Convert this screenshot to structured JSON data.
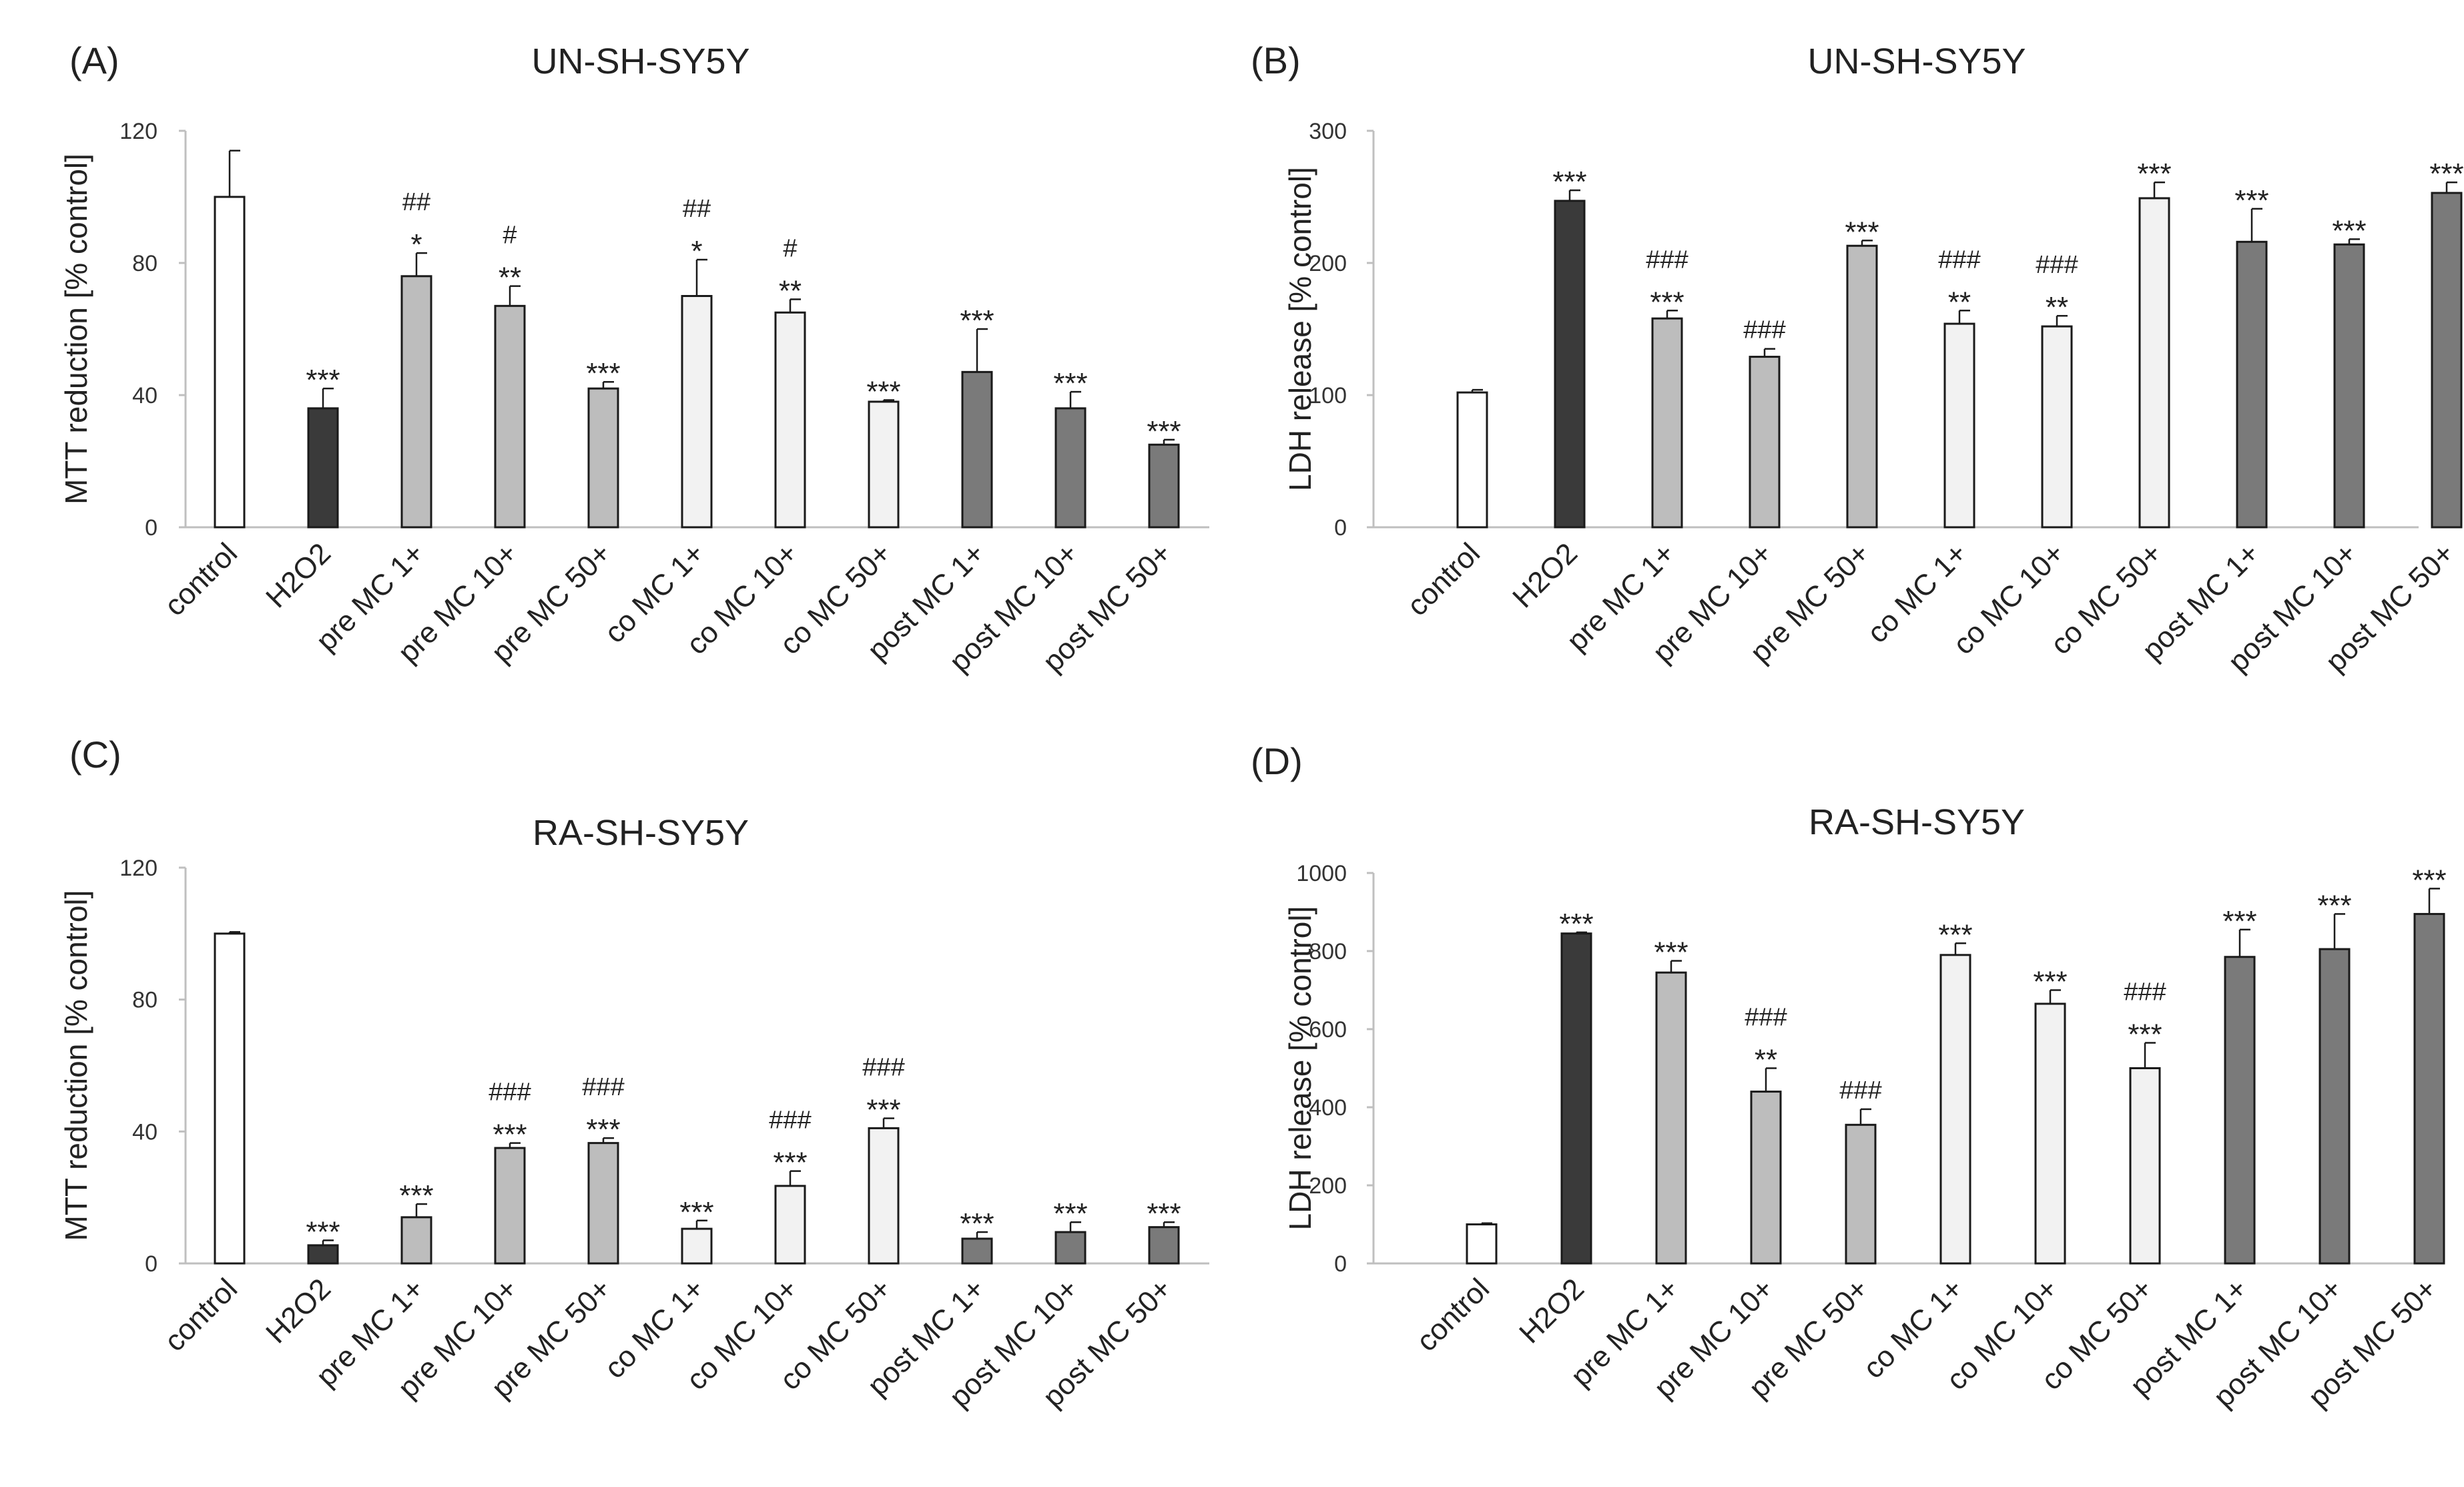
{
  "chart_data": [
    {
      "type": "bar",
      "panel_label": "(A)",
      "title": "UN-SH-SY5Y",
      "xlabel": "",
      "ylabel": "MTT reduction [% control]",
      "ylim": [
        0,
        120
      ],
      "yticks": [
        "0",
        "40",
        "80",
        "120"
      ],
      "grid": false,
      "categories": [
        "control",
        "H2O2",
        "pre MC 1+",
        "pre MC 10+",
        "pre MC 50+",
        "co MC 1+",
        "co MC 10+",
        "co MC 50+",
        "post MC 1+",
        "post MC 10+",
        "post MC 50+"
      ],
      "values": [
        100,
        36,
        76,
        67,
        42,
        70,
        65,
        38,
        47,
        36,
        25
      ],
      "errors": [
        14,
        6,
        7,
        6,
        2,
        11,
        4,
        0.5,
        13,
        5,
        1.5
      ],
      "colors": [
        "#ffffff",
        "#3a3a3a",
        "#bdbdbd",
        "#bdbdbd",
        "#bdbdbd",
        "#f2f2f2",
        "#f2f2f2",
        "#f2f2f2",
        "#7a7a7a",
        "#7a7a7a",
        "#7a7a7a"
      ],
      "sig_stars": [
        "",
        "***",
        "*",
        "**",
        "***",
        "*",
        "**",
        "***",
        "***",
        "***",
        "***"
      ],
      "sig_hash": [
        "",
        "",
        "##",
        "#",
        "",
        "##",
        "#",
        "",
        "",
        "",
        ""
      ]
    },
    {
      "type": "bar",
      "panel_label": "(B)",
      "title": "UN-SH-SY5Y",
      "xlabel": "",
      "ylabel": "LDH release [% control]",
      "ylim": [
        0,
        300
      ],
      "yticks": [
        "0",
        "100",
        "200",
        "300"
      ],
      "grid": false,
      "categories": [
        "control",
        "H2O2",
        "pre MC 1+",
        "pre MC 10+",
        "pre MC 50+",
        "co MC 1+",
        "co MC 10+",
        "co MC 50+",
        "post MC 1+",
        "post MC 10+",
        "post MC 50+"
      ],
      "values": [
        102,
        247,
        158,
        129,
        213,
        154,
        152,
        249,
        216,
        214,
        253
      ],
      "errors": [
        2,
        8,
        6,
        6,
        4,
        10,
        8,
        12,
        25,
        4,
        8
      ],
      "colors": [
        "#ffffff",
        "#3a3a3a",
        "#bdbdbd",
        "#bdbdbd",
        "#bdbdbd",
        "#f2f2f2",
        "#f2f2f2",
        "#f2f2f2",
        "#7a7a7a",
        "#7a7a7a",
        "#7a7a7a"
      ],
      "sig_stars": [
        "",
        "***",
        "***",
        "",
        "***",
        "**",
        "**",
        "***",
        "***",
        "***",
        "***"
      ],
      "sig_hash": [
        "",
        "",
        "###",
        "###",
        "",
        "###",
        "###",
        "",
        "",
        "",
        ""
      ]
    },
    {
      "type": "bar",
      "panel_label": "(C)",
      "title": "RA-SH-SY5Y",
      "xlabel": "",
      "ylabel": "MTT reduction [% control]",
      "ylim": [
        0,
        120
      ],
      "yticks": [
        "0",
        "40",
        "80",
        "120"
      ],
      "grid": false,
      "categories": [
        "control",
        "H2O2",
        "pre MC 1+",
        "pre MC 10+",
        "pre MC 50+",
        "co MC 1+",
        "co MC 10+",
        "co MC 50+",
        "post MC 1+",
        "post MC 10+",
        "post MC 50+"
      ],
      "values": [
        100,
        5.5,
        14,
        35,
        36.5,
        10.5,
        23.5,
        41,
        7.5,
        9.5,
        11
      ],
      "errors": [
        0.5,
        1.5,
        4,
        1.5,
        1.5,
        2.5,
        4.5,
        3,
        2,
        3,
        1.5
      ],
      "colors": [
        "#ffffff",
        "#3a3a3a",
        "#bdbdbd",
        "#bdbdbd",
        "#bdbdbd",
        "#f2f2f2",
        "#f2f2f2",
        "#f2f2f2",
        "#7a7a7a",
        "#7a7a7a",
        "#7a7a7a"
      ],
      "sig_stars": [
        "",
        "***",
        "***",
        "***",
        "***",
        "***",
        "***",
        "***",
        "***",
        "***",
        "***"
      ],
      "sig_hash": [
        "",
        "",
        "",
        "###",
        "###",
        "",
        "###",
        "###",
        "",
        "",
        ""
      ]
    },
    {
      "type": "bar",
      "panel_label": "(D)",
      "title": "RA-SH-SY5Y",
      "xlabel": "",
      "ylabel": "LDH release [% control]",
      "ylim": [
        0,
        1000
      ],
      "yticks": [
        "0",
        "200",
        "400",
        "600",
        "800",
        "1000"
      ],
      "grid": false,
      "categories": [
        "control",
        "H2O2",
        "pre MC 1+",
        "pre MC 10+",
        "pre MC 50+",
        "co MC 1+",
        "co MC 10+",
        "co MC 50+",
        "post MC 1+",
        "post MC 10+",
        "post MC 50+"
      ],
      "values": [
        100,
        845,
        745,
        440,
        355,
        790,
        665,
        500,
        785,
        805,
        895
      ],
      "errors": [
        3,
        3,
        30,
        60,
        40,
        30,
        35,
        65,
        70,
        90,
        65
      ],
      "colors": [
        "#ffffff",
        "#3a3a3a",
        "#bdbdbd",
        "#bdbdbd",
        "#bdbdbd",
        "#f2f2f2",
        "#f2f2f2",
        "#f2f2f2",
        "#7a7a7a",
        "#7a7a7a",
        "#7a7a7a"
      ],
      "sig_stars": [
        "",
        "***",
        "***",
        "**",
        "",
        "***",
        "***",
        "***",
        "***",
        "***",
        "***"
      ],
      "sig_hash": [
        "",
        "",
        "",
        "###",
        "###",
        "",
        "",
        "###",
        "",
        "",
        ""
      ]
    }
  ]
}
